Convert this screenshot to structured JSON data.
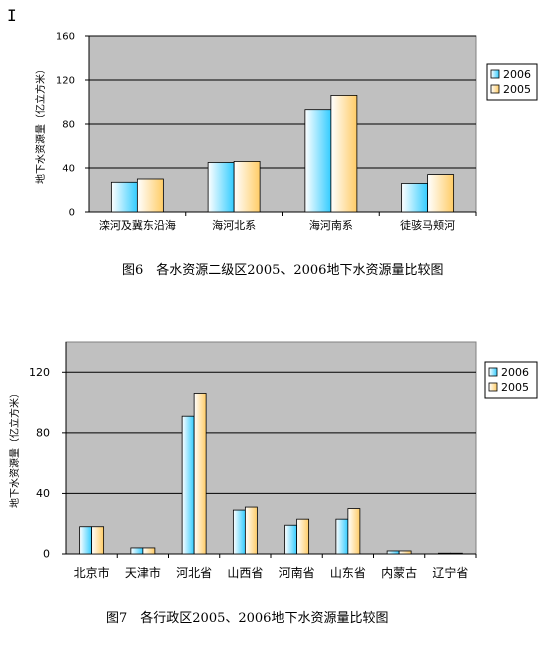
{
  "cursor_glyph": "I",
  "chart_data": [
    {
      "type": "bar",
      "ylabel": "地下水资源量（亿立方米）",
      "ylim": [
        0,
        160
      ],
      "yticks": [
        "0",
        "40",
        "80",
        "120",
        "160"
      ],
      "categories": [
        "滦河及冀东沿海",
        "海河北系",
        "海河南系",
        "徒骇马颊河"
      ],
      "series": [
        {
          "name": "2006",
          "values": [
            27,
            45,
            93,
            26
          ],
          "color_light": "#ffffff",
          "color_dark": "#33ccff"
        },
        {
          "name": "2005",
          "values": [
            30,
            46,
            106,
            34
          ],
          "color_light": "#ffffff",
          "color_dark": "#ffcc66"
        }
      ],
      "plot_bg": "#c0c0c0",
      "legend_position": "right",
      "grid": true,
      "caption": "图6　各水资源二级区2005、2006地下水资源量比较图"
    },
    {
      "type": "bar",
      "ylabel": "地下水资源量（亿立方米）",
      "ylim": [
        0,
        140
      ],
      "yticks": [
        "0",
        "40",
        "80",
        "120"
      ],
      "categories": [
        "北京市",
        "天津市",
        "河北省",
        "山西省",
        "河南省",
        "山东省",
        "内蒙古",
        "辽宁省"
      ],
      "series": [
        {
          "name": "2006",
          "values": [
            18,
            4,
            91,
            29,
            19,
            23,
            2,
            0.5
          ],
          "color_light": "#ffffff",
          "color_dark": "#33ccff"
        },
        {
          "name": "2005",
          "values": [
            18,
            4,
            106,
            31,
            23,
            30,
            2,
            0.5
          ],
          "color_light": "#ffffff",
          "color_dark": "#ffcc66"
        }
      ],
      "plot_bg": "#c0c0c0",
      "legend_position": "right",
      "grid": true,
      "caption": "图7　各行政区2005、2006地下水资源量比较图"
    }
  ]
}
